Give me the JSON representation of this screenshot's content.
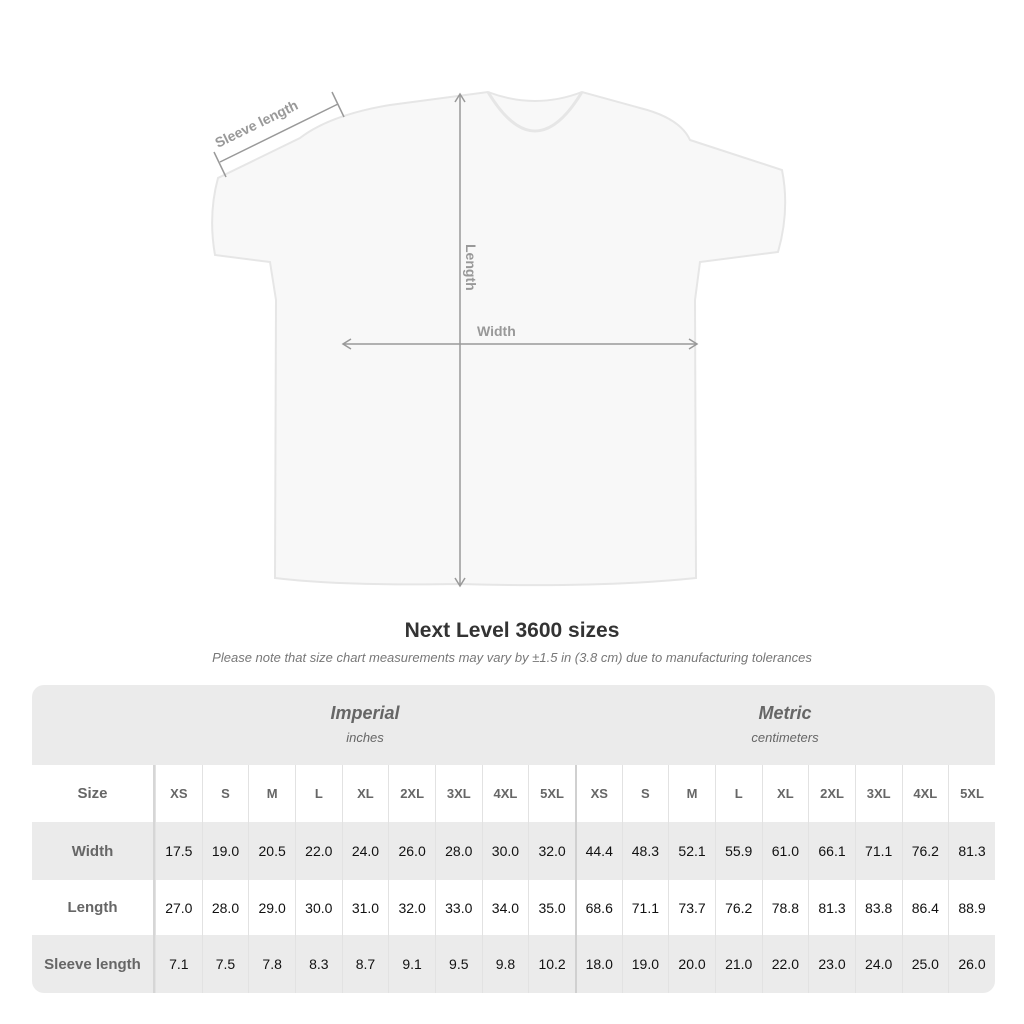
{
  "diagram": {
    "sleeve_label": "Sleeve length",
    "length_label": "Length",
    "width_label": "Width"
  },
  "title": "Next Level 3600 sizes",
  "note": "Please note that size chart measurements may vary by ±1.5 in (3.8 cm) due to manufacturing tolerances",
  "imperial": {
    "unit": "Imperial",
    "sub": "inches"
  },
  "metric": {
    "unit": "Metric",
    "sub": "centimeters"
  },
  "size_label": "Size",
  "sizes": [
    "XS",
    "S",
    "M",
    "L",
    "XL",
    "2XL",
    "3XL",
    "4XL",
    "5XL"
  ],
  "rows": [
    {
      "label": "Width",
      "imperial": [
        "17.5",
        "19.0",
        "20.5",
        "22.0",
        "24.0",
        "26.0",
        "28.0",
        "30.0",
        "32.0"
      ],
      "metric": [
        "44.4",
        "48.3",
        "52.1",
        "55.9",
        "61.0",
        "66.1",
        "71.1",
        "76.2",
        "81.3"
      ]
    },
    {
      "label": "Length",
      "imperial": [
        "27.0",
        "28.0",
        "29.0",
        "30.0",
        "31.0",
        "32.0",
        "33.0",
        "34.0",
        "35.0"
      ],
      "metric": [
        "68.6",
        "71.1",
        "73.7",
        "76.2",
        "78.8",
        "81.3",
        "83.8",
        "86.4",
        "88.9"
      ]
    },
    {
      "label": "Sleeve length",
      "imperial": [
        "7.1",
        "7.5",
        "7.8",
        "8.3",
        "8.7",
        "9.1",
        "9.5",
        "9.8",
        "10.2"
      ],
      "metric": [
        "18.0",
        "19.0",
        "20.0",
        "21.0",
        "22.0",
        "23.0",
        "24.0",
        "25.0",
        "26.0"
      ]
    }
  ],
  "colors": {
    "shirt": "#f8f8f8",
    "measure": "#999999",
    "table_gray": "#ebebeb"
  }
}
